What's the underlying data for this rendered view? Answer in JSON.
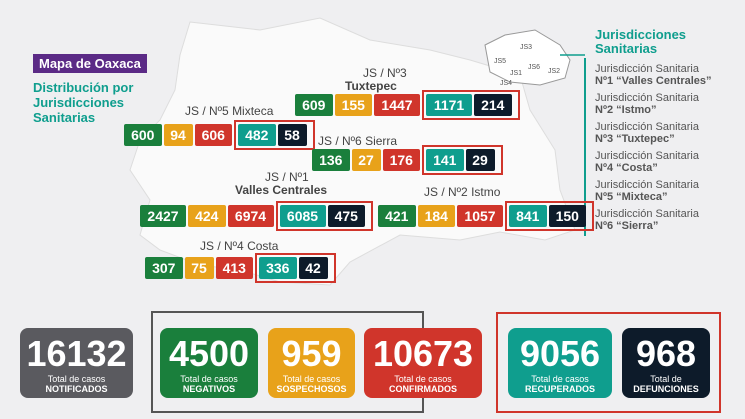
{
  "header": {
    "badge": "Mapa de Oaxaca",
    "subtitle_lines": [
      "Distribución por",
      "Jurisdicciones",
      "Sanitarias"
    ]
  },
  "inset_labels": [
    "JS1",
    "JS2",
    "JS3",
    "JS4",
    "JS5",
    "JS6"
  ],
  "jurisdictions": [
    {
      "label_lines": [
        "JS / Nº3",
        "Tuxtepec"
      ],
      "values": [
        609,
        155,
        1447,
        1171,
        214
      ]
    },
    {
      "label_lines": [
        "JS / Nº5 Mixteca"
      ],
      "values": [
        600,
        94,
        606,
        482,
        58
      ]
    },
    {
      "label_lines": [
        "JS / Nº6 Sierra"
      ],
      "values": [
        136,
        27,
        176,
        141,
        29
      ]
    },
    {
      "label_lines": [
        "JS / Nº1",
        "Valles Centrales"
      ],
      "values": [
        2427,
        424,
        6974,
        6085,
        475
      ]
    },
    {
      "label_lines": [
        "JS / Nº2 Istmo"
      ],
      "values": [
        421,
        184,
        1057,
        841,
        150
      ]
    },
    {
      "label_lines": [
        "JS / Nº4 Costa"
      ],
      "values": [
        307,
        75,
        413,
        336,
        42
      ]
    }
  ],
  "legend": {
    "title_lines": [
      "Jurisdicciones",
      "Sanitarias"
    ],
    "items": [
      {
        "line1": "Jurisdicción Sanitaria",
        "line2": "Nº1 “Valles Centrales”"
      },
      {
        "line1": "Jurisdicción Sanitaria",
        "line2": "Nº2 “Istmo”"
      },
      {
        "line1": "Jurisdicción Sanitaria",
        "line2": "Nº3 “Tuxtepec”"
      },
      {
        "line1": "Jurisdicción Sanitaria",
        "line2": "Nº4 “Costa”"
      },
      {
        "line1": "Jurisdicción Sanitaria",
        "line2": "Nº5 “Mixteca”"
      },
      {
        "line1": "Jurisdicción Sanitaria",
        "line2": "Nº6 “Sierra”"
      }
    ]
  },
  "totals": [
    {
      "value": 16132,
      "caption": "Total de casos",
      "label": "NOTIFICADOS"
    },
    {
      "value": 4500,
      "caption": "Total de casos",
      "label": "NEGATIVOS"
    },
    {
      "value": 959,
      "caption": "Total de casos",
      "label": "SOSPECHOSOS"
    },
    {
      "value": 10673,
      "caption": "Total de casos",
      "label": "CONFIRMADOS"
    },
    {
      "value": 9056,
      "caption": "Total de casos",
      "label": "RECUPERADOS"
    },
    {
      "value": 968,
      "caption": "Total de",
      "label": "DEFUNCIONES"
    }
  ]
}
